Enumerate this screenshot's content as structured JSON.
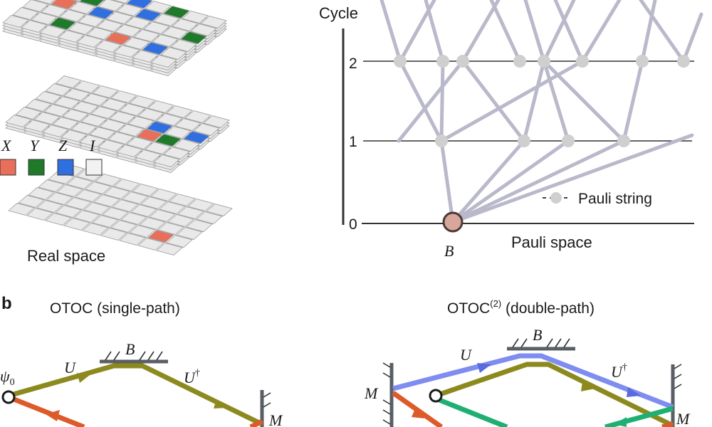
{
  "legend": {
    "items": [
      {
        "label": "X",
        "color": "#e8705a"
      },
      {
        "label": "Y",
        "color": "#1f7a2a"
      },
      {
        "label": "Z",
        "color": "#2f6fe0"
      },
      {
        "label": "I",
        "color": "#f2f2f2"
      }
    ]
  },
  "real_space_label": "Real space",
  "graph": {
    "y_axis_title": "Cycle",
    "cycle_ticks": [
      "0",
      "1",
      "2"
    ],
    "root_label": "B",
    "x_axis_label": "Pauli space",
    "node_legend_label": "Pauli string"
  },
  "panel_b": {
    "panel_letter": "b",
    "left": {
      "title": "OTOC (single-path)",
      "psi_label": "ψ",
      "psi_sub": "0",
      "U_label": "U",
      "Udag_label": "U",
      "dagger": "†",
      "B_label": "B",
      "M_label": "M"
    },
    "right": {
      "title_main": "OTOC",
      "title_sup": "(2)",
      "title_rest": " (double-path)",
      "U_label": "U",
      "Udag_label": "U",
      "dagger": "†",
      "B_label": "B",
      "M_left_label": "M",
      "M_right_label": "M"
    }
  },
  "colors": {
    "x_tile": "#e8705a",
    "y_tile": "#1f7a2a",
    "z_tile": "#2f6fe0",
    "i_tile": "#eeeeee",
    "olive_path": "#8c8a1f",
    "orange_path": "#dd5a2a",
    "blue_path": "#7f8cf0",
    "green_path": "#1faf72",
    "graph_edge": "#b9b9cb",
    "graph_node": "#cfcfcf"
  }
}
